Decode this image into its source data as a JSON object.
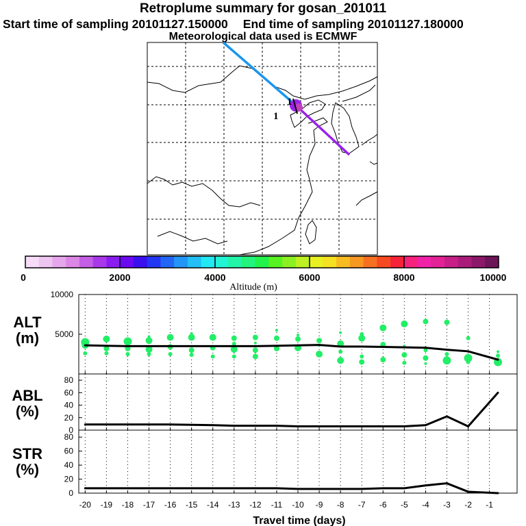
{
  "header": {
    "title": "Retroplume summary for gosan_201011",
    "start": "Start time of sampling 20101127.150000",
    "end": "End time of sampling 20101127.180000",
    "met": "Meteorological data used is ECMWF"
  },
  "map": {
    "markers": [
      "1",
      "1"
    ]
  },
  "colorbar": {
    "label": "Altitude (m)",
    "ticks": [
      "0",
      "2000",
      "4000",
      "6000",
      "8000",
      "10000"
    ],
    "colors": [
      "#f6dcf6",
      "#eec4f0",
      "#e6a6ec",
      "#dc86e6",
      "#c45ee4",
      "#a838ea",
      "#8a1cf0",
      "#6a0af0",
      "#3a10ee",
      "#2236f4",
      "#2266f6",
      "#2296f6",
      "#22c0f6",
      "#22e8f4",
      "#22f4d6",
      "#22f4a8",
      "#22f47c",
      "#22f24c",
      "#56f222",
      "#8af022",
      "#bcf022",
      "#e8f022",
      "#f6e022",
      "#f6bc22",
      "#f69822",
      "#f67022",
      "#f64a22",
      "#f6223a",
      "#f6227c",
      "#f022a8",
      "#e22296",
      "#c81e88",
      "#aa1c7a",
      "#8c186a",
      "#6e1458"
    ]
  },
  "chart_data": [
    {
      "type": "line",
      "name": "ALT",
      "ylabel": "ALT\n(m)",
      "ylabel_lines": [
        "ALT",
        "(m)"
      ],
      "ylim": [
        0,
        10000
      ],
      "yticks": [
        "5000",
        "10000"
      ],
      "xlim": [
        -20,
        0
      ],
      "x": [
        -20,
        -19,
        -18,
        -17,
        -16,
        -15,
        -14,
        -13,
        -12,
        -11,
        -10,
        -9,
        -8,
        -7,
        -6,
        -5,
        -4,
        -3,
        -2,
        -0.6
      ],
      "values": [
        3600,
        3550,
        3500,
        3500,
        3500,
        3500,
        3500,
        3500,
        3500,
        3550,
        3600,
        3650,
        3450,
        3450,
        3400,
        3350,
        3300,
        3050,
        2850,
        1800
      ],
      "scatter": [
        [
          -20,
          4000,
          6
        ],
        [
          -20,
          3600,
          5
        ],
        [
          -20,
          2600,
          3
        ],
        [
          -19,
          4400,
          5
        ],
        [
          -19,
          3200,
          4
        ],
        [
          -19,
          2600,
          3
        ],
        [
          -18,
          4100,
          6
        ],
        [
          -18,
          3200,
          4
        ],
        [
          -18,
          2500,
          3
        ],
        [
          -17,
          4200,
          5
        ],
        [
          -17,
          3100,
          5
        ],
        [
          -17,
          2500,
          3
        ],
        [
          -17,
          4700,
          2
        ],
        [
          -16,
          4600,
          5
        ],
        [
          -16,
          3400,
          4
        ],
        [
          -16,
          2500,
          3
        ],
        [
          -15,
          4600,
          5
        ],
        [
          -15,
          3000,
          4
        ],
        [
          -15,
          2400,
          3
        ],
        [
          -15,
          5100,
          2
        ],
        [
          -14,
          4600,
          5
        ],
        [
          -14,
          3300,
          4
        ],
        [
          -14,
          2200,
          3
        ],
        [
          -13,
          4500,
          4
        ],
        [
          -13,
          3100,
          5
        ],
        [
          -13,
          2200,
          3
        ],
        [
          -13,
          3800,
          3
        ],
        [
          -12,
          4600,
          4
        ],
        [
          -12,
          3000,
          4
        ],
        [
          -12,
          2200,
          4
        ],
        [
          -12,
          3900,
          2
        ],
        [
          -11,
          4500,
          4
        ],
        [
          -11,
          3200,
          4
        ],
        [
          -11,
          5500,
          2
        ],
        [
          -10,
          4400,
          4
        ],
        [
          -10,
          3300,
          5
        ],
        [
          -10,
          4900,
          2
        ],
        [
          -9,
          4200,
          4
        ],
        [
          -9,
          2500,
          5
        ],
        [
          -9,
          3600,
          2
        ],
        [
          -8,
          3800,
          5
        ],
        [
          -8,
          1700,
          5
        ],
        [
          -8,
          5200,
          2
        ],
        [
          -8,
          2800,
          3
        ],
        [
          -7,
          4500,
          5
        ],
        [
          -7,
          1500,
          4
        ],
        [
          -7,
          5000,
          3
        ],
        [
          -7,
          2200,
          3
        ],
        [
          -6,
          5800,
          5
        ],
        [
          -6,
          1800,
          4
        ],
        [
          -6,
          3700,
          4
        ],
        [
          -5,
          6300,
          5
        ],
        [
          -5,
          2400,
          4
        ],
        [
          -5,
          1400,
          3
        ],
        [
          -5,
          3500,
          2
        ],
        [
          -4,
          6600,
          4
        ],
        [
          -4,
          2000,
          4
        ],
        [
          -4,
          3000,
          3
        ],
        [
          -4,
          1300,
          2
        ],
        [
          -3,
          6500,
          4
        ],
        [
          -3,
          1700,
          6
        ],
        [
          -3,
          2500,
          3
        ],
        [
          -2,
          4500,
          3
        ],
        [
          -2,
          2000,
          6
        ],
        [
          -2,
          1500,
          3
        ],
        [
          -0.6,
          1500,
          6
        ],
        [
          -0.6,
          2300,
          3
        ],
        [
          -0.6,
          2800,
          2
        ]
      ]
    },
    {
      "type": "line",
      "name": "ABL",
      "ylabel": "ABL\n(%)",
      "ylabel_lines": [
        "ABL",
        "(%)"
      ],
      "ylim": [
        0,
        90
      ],
      "yticks": [
        "0",
        "20",
        "40",
        "60",
        "80"
      ],
      "xlim": [
        -20,
        0
      ],
      "x": [
        -20,
        -19,
        -18,
        -17,
        -16,
        -15,
        -14,
        -13,
        -12,
        -11,
        -10,
        -9,
        -8,
        -7,
        -6,
        -5,
        -4,
        -3,
        -2,
        -0.6
      ],
      "values": [
        9,
        9,
        9,
        9,
        9,
        8.5,
        8,
        7,
        7,
        7,
        6,
        6,
        6,
        6,
        6,
        6,
        8,
        22,
        6,
        60
      ]
    },
    {
      "type": "line",
      "name": "STR",
      "ylabel": "STR\n(%)",
      "ylabel_lines": [
        "STR",
        "(%)"
      ],
      "ylim": [
        0,
        90
      ],
      "yticks": [
        "0",
        "20",
        "40",
        "60",
        "80"
      ],
      "xlim": [
        -20,
        0
      ],
      "x": [
        -20,
        -19,
        -18,
        -17,
        -16,
        -15,
        -14,
        -13,
        -12,
        -11,
        -10,
        -9,
        -8,
        -7,
        -6,
        -5,
        -4,
        -3,
        -2,
        -0.6
      ],
      "values": [
        7,
        7,
        7,
        7,
        7,
        7,
        7,
        7,
        7,
        7,
        6,
        6,
        6,
        6,
        7,
        7,
        11,
        14,
        2,
        0
      ],
      "xlabel": "Travel time (days)",
      "xticks": [
        "-20",
        "-19",
        "-18",
        "-17",
        "-16",
        "-15",
        "-14",
        "-13",
        "-12",
        "-11",
        "-10",
        "-9",
        "-8",
        "-7",
        "-6",
        "-5",
        "-4",
        "-3",
        "-2",
        "-1"
      ]
    }
  ]
}
